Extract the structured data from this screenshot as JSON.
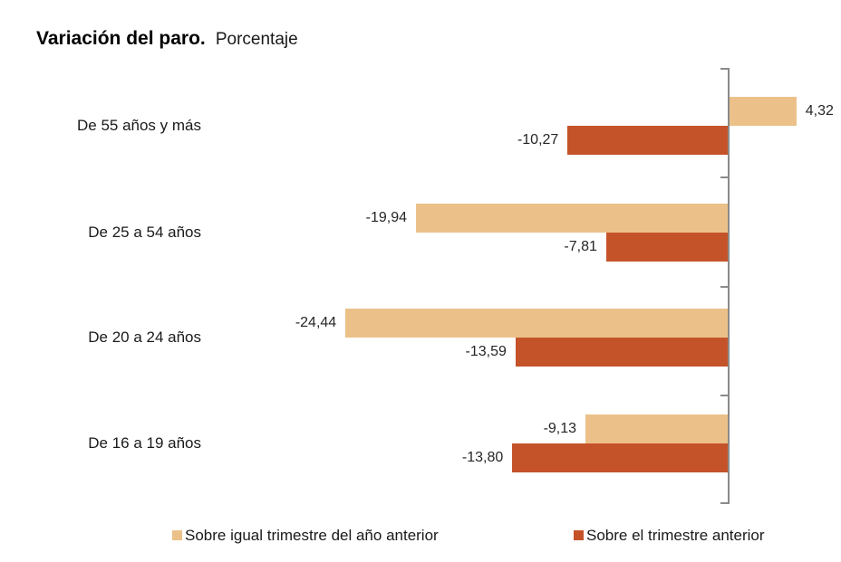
{
  "title": {
    "main": "Variación del paro.",
    "subtitle": "Porcentaje"
  },
  "colors": {
    "series_yoy": "#ecc189",
    "series_qoq": "#c5532a",
    "axis": "#8a8a8a",
    "text": "#1a1a1a"
  },
  "legend": [
    {
      "id": "yoy",
      "label": "Sobre igual trimestre del año anterior",
      "color": "#ecc189"
    },
    {
      "id": "qoq",
      "label": "Sobre el trimestre anterior",
      "color": "#c5532a"
    }
  ],
  "chart_data": {
    "type": "bar",
    "orientation": "horizontal",
    "title": "Variación del paro. Porcentaje",
    "categories": [
      "De 55 años y más",
      "De 25 a 54 años",
      "De 20 a 24 años",
      "De 16 a 19 años"
    ],
    "series": [
      {
        "name": "Sobre igual trimestre del año anterior",
        "color": "#ecc189",
        "values": [
          4.32,
          -19.94,
          -24.44,
          -9.13
        ],
        "value_labels": [
          "4,32",
          "-19,94",
          "-24,44",
          "-9,13"
        ]
      },
      {
        "name": "Sobre el trimestre anterior",
        "color": "#c5532a",
        "values": [
          -10.27,
          -7.81,
          -13.59,
          -13.8
        ],
        "value_labels": [
          "-10,27",
          "-7,81",
          "-13,59",
          "-13,80"
        ]
      }
    ],
    "xlim": [
      -30,
      7
    ],
    "grid": false,
    "legend_position": "bottom",
    "decimal_separator": ","
  }
}
